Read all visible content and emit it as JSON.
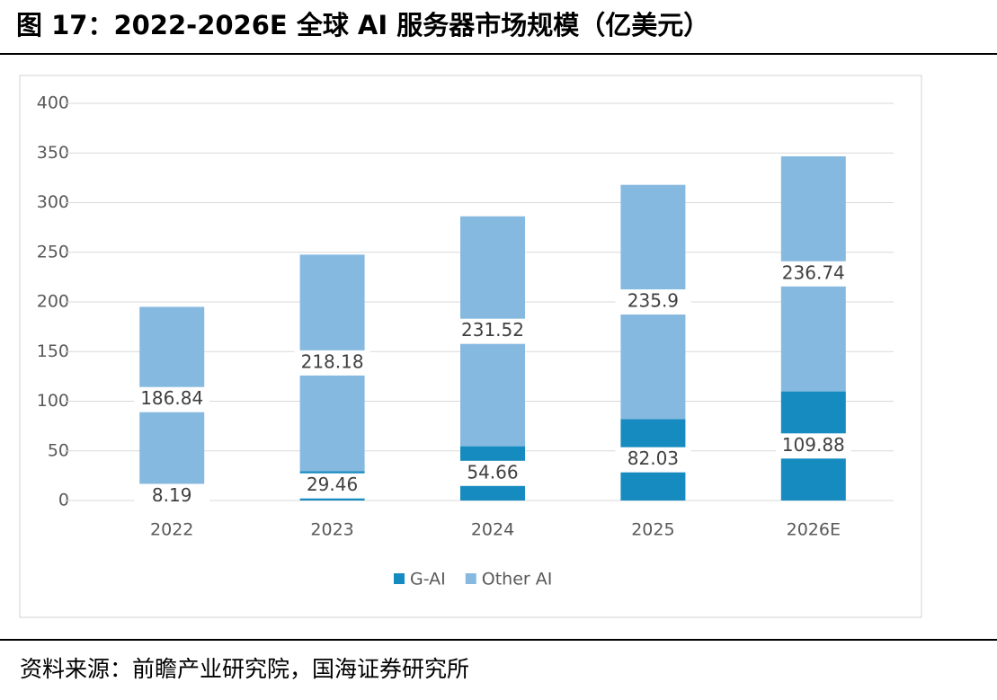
{
  "chart_data": {
    "type": "stacked_bar",
    "title": "图 17：2022-2026E 全球 AI 服务器市场规模（亿美元）",
    "categories": [
      "2022",
      "2023",
      "2024",
      "2025",
      "2026E"
    ],
    "series": [
      {
        "name": "G-AI",
        "color": "#168bbf",
        "values": [
          8.19,
          29.46,
          54.66,
          82.03,
          109.88
        ]
      },
      {
        "name": "Other AI",
        "color": "#86b9e0",
        "values": [
          186.84,
          218.18,
          231.52,
          235.9,
          236.74
        ]
      }
    ],
    "ylim": [
      0,
      400
    ],
    "yticks": [
      0,
      50,
      100,
      150,
      200,
      250,
      300,
      350,
      400
    ],
    "grid": true,
    "legend": "bottom",
    "source": "资料来源：前瞻产业研究院，国海证券研究所"
  }
}
